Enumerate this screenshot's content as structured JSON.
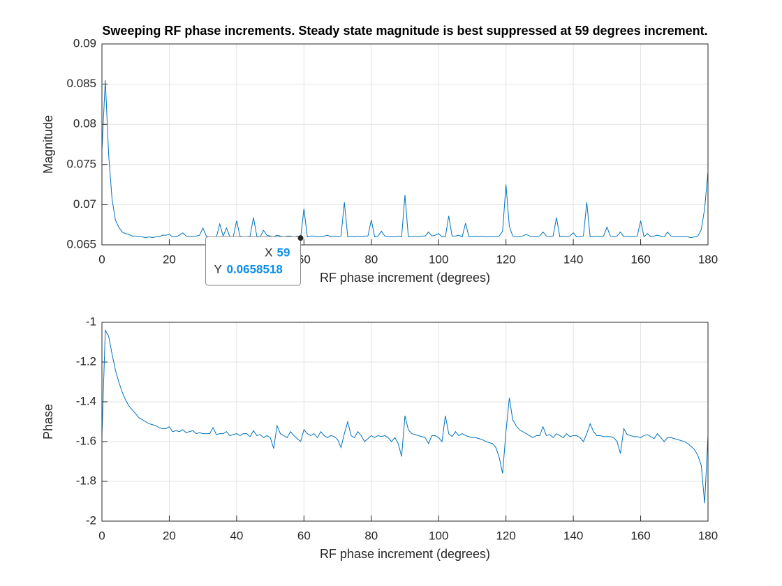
{
  "chart_data": [
    {
      "type": "line",
      "title": "Sweeping RF phase increments. Steady state magnitude is best suppressed at 59 degrees increment.",
      "xlabel": "RF phase increment (degrees)",
      "ylabel": "Magnitude",
      "xlim": [
        0,
        180
      ],
      "xticks": [
        0,
        20,
        40,
        60,
        80,
        100,
        120,
        140,
        160,
        180
      ],
      "ylim": [
        0.065,
        0.09
      ],
      "yticks": [
        0.065,
        0.07,
        0.075,
        0.08,
        0.085,
        0.09
      ],
      "grid": true,
      "x": [
        0,
        1,
        2,
        3,
        4,
        5,
        6,
        7,
        8,
        9,
        10,
        11,
        12,
        13,
        14,
        15,
        16,
        17,
        18,
        19,
        20,
        21,
        22,
        23,
        24,
        25,
        26,
        27,
        28,
        29,
        30,
        31,
        32,
        33,
        34,
        35,
        36,
        37,
        38,
        39,
        40,
        41,
        42,
        43,
        44,
        45,
        46,
        47,
        48,
        49,
        50,
        51,
        52,
        53,
        54,
        55,
        56,
        57,
        58,
        59,
        60,
        61,
        62,
        63,
        64,
        65,
        66,
        67,
        68,
        69,
        70,
        71,
        72,
        73,
        74,
        75,
        76,
        77,
        78,
        79,
        80,
        81,
        82,
        83,
        84,
        85,
        86,
        87,
        88,
        89,
        90,
        91,
        92,
        93,
        94,
        95,
        96,
        97,
        98,
        99,
        100,
        101,
        102,
        103,
        104,
        105,
        106,
        107,
        108,
        109,
        110,
        111,
        112,
        113,
        114,
        115,
        116,
        117,
        118,
        119,
        120,
        121,
        122,
        123,
        124,
        125,
        126,
        127,
        128,
        129,
        130,
        131,
        132,
        133,
        134,
        135,
        136,
        137,
        138,
        139,
        140,
        141,
        142,
        143,
        144,
        145,
        146,
        147,
        148,
        149,
        150,
        151,
        152,
        153,
        154,
        155,
        156,
        157,
        158,
        159,
        160,
        161,
        162,
        163,
        164,
        165,
        166,
        167,
        168,
        169,
        170,
        171,
        172,
        173,
        174,
        175,
        176,
        177,
        178,
        179,
        180
      ],
      "series": [
        {
          "color": "#0072bd",
          "values": [
            0.0768,
            0.0855,
            0.0762,
            0.0707,
            0.0681,
            0.0672,
            0.0666,
            0.0664,
            0.0663,
            0.0661,
            0.0661,
            0.066,
            0.066,
            0.0659,
            0.066,
            0.0659,
            0.066,
            0.066,
            0.0662,
            0.0662,
            0.0663,
            0.066,
            0.066,
            0.0662,
            0.0665,
            0.0661,
            0.066,
            0.066,
            0.0661,
            0.0662,
            0.0671,
            0.0661,
            0.066,
            0.066,
            0.066,
            0.0676,
            0.0661,
            0.0671,
            0.066,
            0.066,
            0.068,
            0.0661,
            0.066,
            0.066,
            0.0661,
            0.0684,
            0.0661,
            0.066,
            0.0668,
            0.0662,
            0.0661,
            0.066,
            0.0662,
            0.0661,
            0.066,
            0.0661,
            0.0661,
            0.066,
            0.0661,
            0.0658518,
            0.0695,
            0.066,
            0.0661,
            0.0661,
            0.066,
            0.066,
            0.0661,
            0.0662,
            0.066,
            0.0661,
            0.066,
            0.0661,
            0.0703,
            0.066,
            0.0661,
            0.066,
            0.0661,
            0.066,
            0.0661,
            0.0661,
            0.0681,
            0.066,
            0.0661,
            0.0667,
            0.0661,
            0.066,
            0.066,
            0.066,
            0.0661,
            0.066,
            0.0712,
            0.066,
            0.066,
            0.0661,
            0.066,
            0.0661,
            0.0661,
            0.0666,
            0.0661,
            0.0662,
            0.0664,
            0.066,
            0.066,
            0.0686,
            0.0661,
            0.0661,
            0.0662,
            0.066,
            0.0677,
            0.066,
            0.066,
            0.0661,
            0.066,
            0.0661,
            0.066,
            0.066,
            0.066,
            0.066,
            0.0661,
            0.0667,
            0.0725,
            0.0673,
            0.0661,
            0.066,
            0.066,
            0.0661,
            0.0663,
            0.0661,
            0.066,
            0.066,
            0.0661,
            0.0666,
            0.0661,
            0.066,
            0.0661,
            0.0684,
            0.066,
            0.0661,
            0.066,
            0.0661,
            0.0665,
            0.066,
            0.066,
            0.0661,
            0.0703,
            0.066,
            0.066,
            0.0661,
            0.066,
            0.0661,
            0.0672,
            0.0661,
            0.066,
            0.0661,
            0.0666,
            0.066,
            0.0661,
            0.066,
            0.066,
            0.0661,
            0.068,
            0.066,
            0.0664,
            0.066,
            0.0661,
            0.0662,
            0.0661,
            0.066,
            0.0666,
            0.0661,
            0.066,
            0.066,
            0.066,
            0.066,
            0.066,
            0.0659,
            0.066,
            0.0661,
            0.0669,
            0.0695,
            0.0741
          ]
        }
      ],
      "datatip": {
        "x_label": "X",
        "x": 59,
        "y_label": "Y",
        "y": 0.0658518
      }
    },
    {
      "type": "line",
      "xlabel": "RF phase increment (degrees)",
      "ylabel": "Phase",
      "xlim": [
        0,
        180
      ],
      "xticks": [
        0,
        20,
        40,
        60,
        80,
        100,
        120,
        140,
        160,
        180
      ],
      "ylim": [
        -2,
        -1
      ],
      "yticks": [
        -2,
        -1.8,
        -1.6,
        -1.4,
        -1.2,
        -1
      ],
      "grid": true,
      "x": [
        0,
        1,
        2,
        3,
        4,
        5,
        6,
        7,
        8,
        9,
        10,
        11,
        12,
        13,
        14,
        15,
        16,
        17,
        18,
        19,
        20,
        21,
        22,
        23,
        24,
        25,
        26,
        27,
        28,
        29,
        30,
        31,
        32,
        33,
        34,
        35,
        36,
        37,
        38,
        39,
        40,
        41,
        42,
        43,
        44,
        45,
        46,
        47,
        48,
        49,
        50,
        51,
        52,
        53,
        54,
        55,
        56,
        57,
        58,
        59,
        60,
        61,
        62,
        63,
        64,
        65,
        66,
        67,
        68,
        69,
        70,
        71,
        72,
        73,
        74,
        75,
        76,
        77,
        78,
        79,
        80,
        81,
        82,
        83,
        84,
        85,
        86,
        87,
        88,
        89,
        90,
        91,
        92,
        93,
        94,
        95,
        96,
        97,
        98,
        99,
        100,
        101,
        102,
        103,
        104,
        105,
        106,
        107,
        108,
        109,
        110,
        111,
        112,
        113,
        114,
        115,
        116,
        117,
        118,
        119,
        120,
        121,
        122,
        123,
        124,
        125,
        126,
        127,
        128,
        129,
        130,
        131,
        132,
        133,
        134,
        135,
        136,
        137,
        138,
        139,
        140,
        141,
        142,
        143,
        144,
        145,
        146,
        147,
        148,
        149,
        150,
        151,
        152,
        153,
        154,
        155,
        156,
        157,
        158,
        159,
        160,
        161,
        162,
        163,
        164,
        165,
        166,
        167,
        168,
        169,
        170,
        171,
        172,
        173,
        174,
        175,
        176,
        177,
        178,
        179,
        180
      ],
      "series": [
        {
          "color": "#0072bd",
          "values": [
            -1.57,
            -1.04,
            -1.07,
            -1.16,
            -1.24,
            -1.3,
            -1.35,
            -1.39,
            -1.42,
            -1.44,
            -1.46,
            -1.48,
            -1.49,
            -1.5,
            -1.51,
            -1.515,
            -1.52,
            -1.53,
            -1.535,
            -1.535,
            -1.525,
            -1.55,
            -1.545,
            -1.55,
            -1.54,
            -1.555,
            -1.55,
            -1.545,
            -1.56,
            -1.555,
            -1.56,
            -1.56,
            -1.56,
            -1.53,
            -1.565,
            -1.56,
            -1.56,
            -1.55,
            -1.57,
            -1.565,
            -1.56,
            -1.57,
            -1.56,
            -1.56,
            -1.575,
            -1.545,
            -1.57,
            -1.565,
            -1.58,
            -1.57,
            -1.58,
            -1.635,
            -1.52,
            -1.56,
            -1.57,
            -1.58,
            -1.55,
            -1.57,
            -1.585,
            -1.6,
            -1.54,
            -1.56,
            -1.57,
            -1.56,
            -1.58,
            -1.55,
            -1.57,
            -1.58,
            -1.57,
            -1.575,
            -1.59,
            -1.63,
            -1.56,
            -1.5,
            -1.57,
            -1.58,
            -1.55,
            -1.57,
            -1.6,
            -1.585,
            -1.57,
            -1.58,
            -1.57,
            -1.575,
            -1.57,
            -1.58,
            -1.6,
            -1.58,
            -1.61,
            -1.675,
            -1.47,
            -1.54,
            -1.56,
            -1.565,
            -1.57,
            -1.575,
            -1.58,
            -1.61,
            -1.57,
            -1.57,
            -1.58,
            -1.6,
            -1.47,
            -1.56,
            -1.575,
            -1.55,
            -1.57,
            -1.56,
            -1.57,
            -1.575,
            -1.58,
            -1.58,
            -1.585,
            -1.59,
            -1.6,
            -1.605,
            -1.61,
            -1.63,
            -1.68,
            -1.76,
            -1.55,
            -1.38,
            -1.49,
            -1.52,
            -1.54,
            -1.55,
            -1.56,
            -1.57,
            -1.58,
            -1.57,
            -1.57,
            -1.525,
            -1.57,
            -1.565,
            -1.58,
            -1.56,
            -1.57,
            -1.58,
            -1.56,
            -1.575,
            -1.57,
            -1.57,
            -1.58,
            -1.6,
            -1.56,
            -1.51,
            -1.55,
            -1.57,
            -1.57,
            -1.575,
            -1.575,
            -1.575,
            -1.58,
            -1.6,
            -1.66,
            -1.535,
            -1.565,
            -1.57,
            -1.575,
            -1.575,
            -1.58,
            -1.57,
            -1.565,
            -1.575,
            -1.585,
            -1.56,
            -1.58,
            -1.6,
            -1.58,
            -1.58,
            -1.585,
            -1.59,
            -1.595,
            -1.6,
            -1.61,
            -1.625,
            -1.64,
            -1.67,
            -1.72,
            -1.91,
            -1.57
          ]
        }
      ]
    }
  ]
}
